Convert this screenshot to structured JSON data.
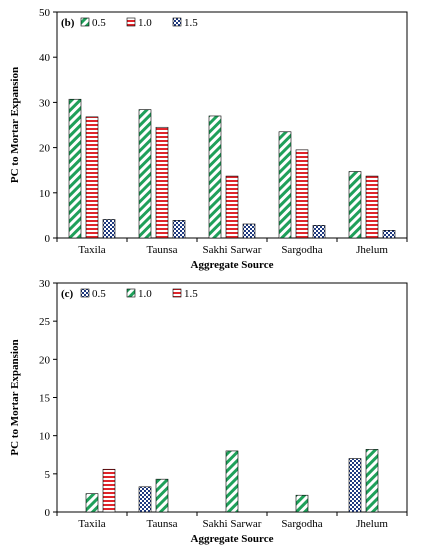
{
  "chart_data": [
    {
      "type": "bar",
      "panel_label": "(b)",
      "categories": [
        "Taxila",
        "Taunsa",
        "Sakhi Sarwar",
        "Sargodha",
        "Jhelum"
      ],
      "series": [
        {
          "name": "0.5",
          "values": [
            30.7,
            28.4,
            27.0,
            23.5,
            14.7
          ],
          "color": "#1fa05a",
          "pattern": "diagonal-stripes"
        },
        {
          "name": "1.0",
          "values": [
            26.8,
            24.5,
            13.7,
            19.5,
            13.7
          ],
          "color": "#e0262c",
          "pattern": "horizontal-stripes"
        },
        {
          "name": "1.5",
          "values": [
            4.1,
            3.9,
            3.1,
            2.8,
            1.7
          ],
          "color": "#1f3a80",
          "pattern": "checker"
        }
      ],
      "xlabel": "Aggregate Source",
      "ylabel": "PC to Mortar Expansion",
      "ylim": [
        0,
        50
      ],
      "yticks": [
        "0",
        "10",
        "20",
        "30",
        "40",
        "50"
      ],
      "grid": false,
      "legend": "top-left"
    },
    {
      "type": "bar",
      "panel_label": "(c)",
      "categories": [
        "Taxila",
        "Taunsa",
        "Sakhi Sarwar",
        "Sargodha",
        "Jhelum"
      ],
      "series": [
        {
          "name": "0.5",
          "values": [
            0,
            3.3,
            0,
            0,
            7.0
          ],
          "color": "#1f3a80",
          "pattern": "checker"
        },
        {
          "name": "1.0",
          "values": [
            2.4,
            4.3,
            8.0,
            2.2,
            8.2
          ],
          "color": "#1fa05a",
          "pattern": "diagonal-stripes"
        },
        {
          "name": "1.5",
          "values": [
            5.6,
            0,
            0,
            0,
            0
          ],
          "color": "#e0262c",
          "pattern": "horizontal-stripes"
        }
      ],
      "xlabel": "Aggregate Source",
      "ylabel": "PC to Mortar Expansion",
      "ylim": [
        0,
        30
      ],
      "yticks": [
        "0",
        "5",
        "10",
        "15",
        "20",
        "25",
        "30"
      ],
      "grid": false,
      "legend": "top-left"
    }
  ]
}
